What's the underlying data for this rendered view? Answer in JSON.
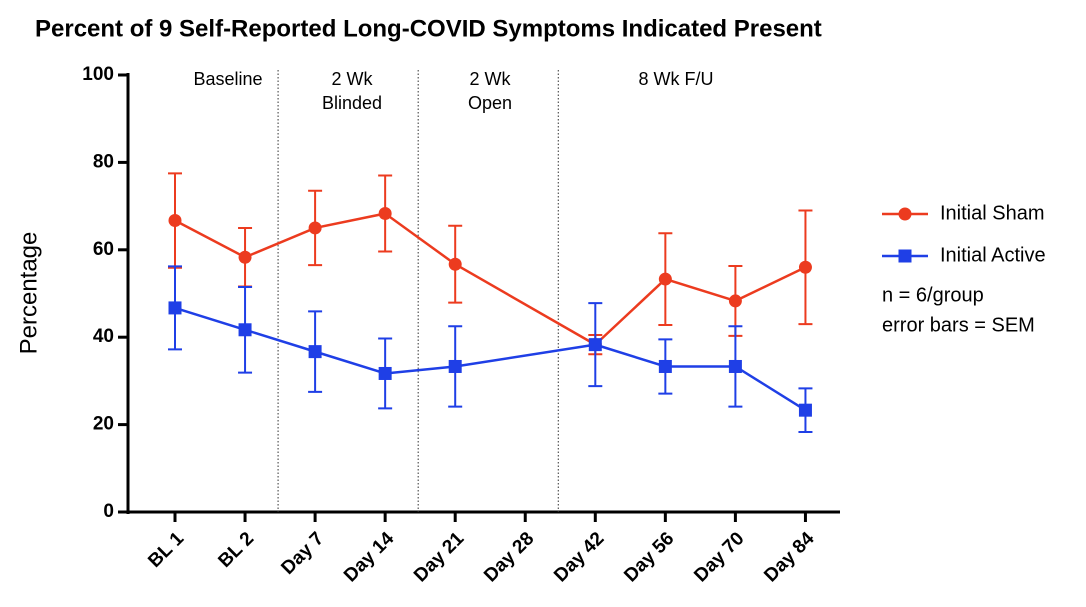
{
  "chart_data": {
    "type": "line",
    "title": "Percent of 9 Self-Reported Long-COVID Symptoms Indicated Present",
    "y_label": "Percentage",
    "categories": [
      "BL 1",
      "BL 2",
      "Day 7",
      "Day 14",
      "Day 21",
      "Day 28",
      "Day 42",
      "Day 56",
      "Day 70",
      "Day 84"
    ],
    "phases": [
      [
        "Baseline"
      ],
      [
        "2 Wk",
        "Blinded"
      ],
      [
        "2 Wk",
        "Open"
      ],
      [
        "8 Wk F/U"
      ]
    ],
    "series": [
      {
        "name": "Initial Sham",
        "color": "#ec3b1f",
        "marker": "circle",
        "values": [
          66.7,
          58.3,
          65,
          68.3,
          56.7,
          null,
          38.3,
          53.3,
          48.3,
          56
        ],
        "errors": [
          10.8,
          6.7,
          8.5,
          8.7,
          8.8,
          null,
          2.2,
          10.5,
          8,
          13
        ]
      },
      {
        "name": "Initial Active",
        "color": "#1f3fe6",
        "marker": "square",
        "values": [
          46.7,
          41.7,
          36.7,
          31.7,
          33.3,
          null,
          38.3,
          33.3,
          33.3,
          23.3
        ],
        "errors": [
          9.5,
          9.8,
          9.2,
          8,
          9.2,
          null,
          9.5,
          6.2,
          9.2,
          5
        ]
      }
    ],
    "annotations": [
      "n = 6/group",
      "error bars = SEM"
    ],
    "ylim": [
      0,
      100
    ],
    "yticks": [
      0,
      20,
      40,
      60,
      80,
      100
    ],
    "grid": false
  }
}
